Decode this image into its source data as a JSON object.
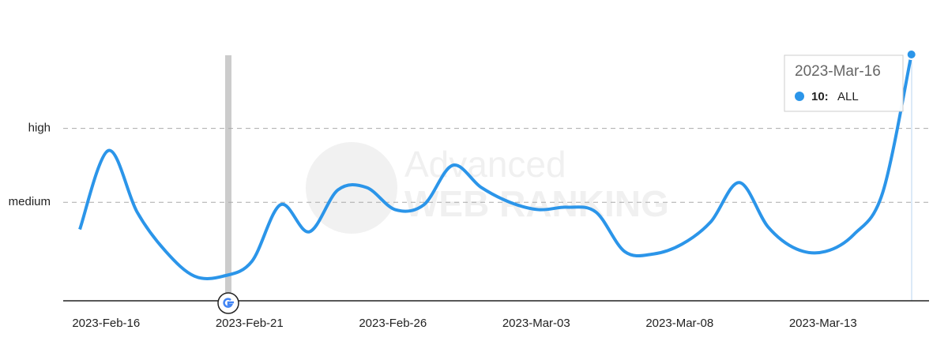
{
  "chart_data": {
    "type": "line",
    "categories": [
      null,
      "2023-Feb-16",
      null,
      null,
      null,
      null,
      "2023-Feb-21",
      null,
      null,
      null,
      null,
      "2023-Feb-26",
      null,
      null,
      null,
      null,
      "2023-Mar-03",
      null,
      null,
      null,
      null,
      "2023-Mar-08",
      null,
      null,
      null,
      null,
      "2023-Mar-13",
      null,
      null,
      "2023-Mar-16"
    ],
    "series": [
      {
        "name": "ALL",
        "color": "#2b95e9",
        "values": [
          2.9,
          6.1,
          3.6,
          2.0,
          1.0,
          1.0,
          1.6,
          3.9,
          2.8,
          4.5,
          4.6,
          3.7,
          3.9,
          5.5,
          4.6,
          4.0,
          3.7,
          3.8,
          3.6,
          2.0,
          1.9,
          2.3,
          3.2,
          4.8,
          3.0,
          2.1,
          2.0,
          2.7,
          4.4,
          10
        ],
        "value_labels": [
          null,
          null,
          null,
          null,
          null,
          null,
          null,
          null,
          null,
          null,
          null,
          null,
          null,
          null,
          null,
          null,
          null,
          null,
          null,
          null,
          null,
          null,
          null,
          null,
          null,
          null,
          null,
          null,
          null,
          "10:"
        ]
      }
    ],
    "ylim": [
      0,
      10
    ],
    "yticks": [
      {
        "value": 7,
        "label": "high"
      },
      {
        "value": 4,
        "label": "medium"
      }
    ],
    "grid": true,
    "watermark": [
      "Advanced",
      "WEB RANKING"
    ]
  }
}
